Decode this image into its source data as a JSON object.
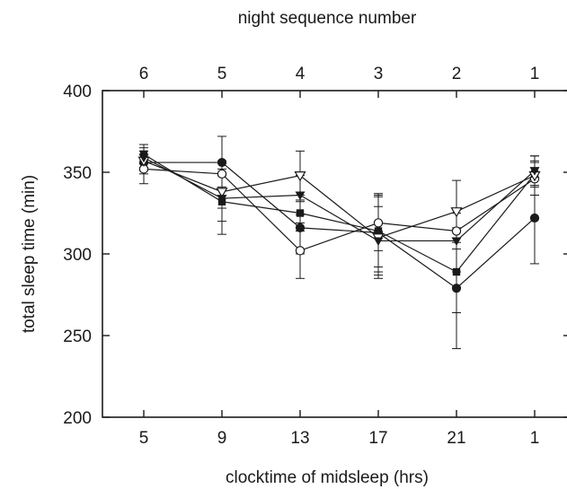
{
  "chart_data": {
    "type": "line",
    "xlabel": "clocktime of midsleep (hrs)",
    "x2label": "night sequence number",
    "ylabel": "total sleep time (min)",
    "x_ticks_bottom": [
      "5",
      "9",
      "13",
      "17",
      "21",
      "1"
    ],
    "x_ticks_top": [
      "6",
      "5",
      "4",
      "3",
      "2",
      "1"
    ],
    "y_ticks": [
      "200",
      "250",
      "300",
      "350",
      "400"
    ],
    "ylim": [
      200,
      400
    ],
    "grid": false,
    "legend": "none",
    "series": [
      {
        "marker": "filled-circle",
        "values": [
          356,
          356,
          316,
          313,
          279,
          322
        ],
        "err": [
          7,
          16,
          16,
          24,
          37,
          28
        ]
      },
      {
        "marker": "open-circle",
        "values": [
          352,
          349,
          302,
          319,
          314,
          346
        ],
        "err": [
          9,
          8,
          17,
          17,
          11,
          10
        ]
      },
      {
        "marker": "filled-square",
        "values": [
          361,
          332,
          325,
          314,
          289,
          349
        ],
        "err": [
          6,
          20,
          11,
          22,
          25,
          8
        ]
      },
      {
        "marker": "open-triangle",
        "values": [
          357,
          338,
          348,
          310,
          326,
          348
        ],
        "err": [
          6,
          10,
          15,
          25,
          19,
          12
        ]
      },
      {
        "marker": "filled-triangle",
        "values": [
          359,
          334,
          336,
          308,
          308,
          351
        ],
        "err": [
          6,
          14,
          12,
          21,
          19,
          9
        ]
      }
    ]
  }
}
